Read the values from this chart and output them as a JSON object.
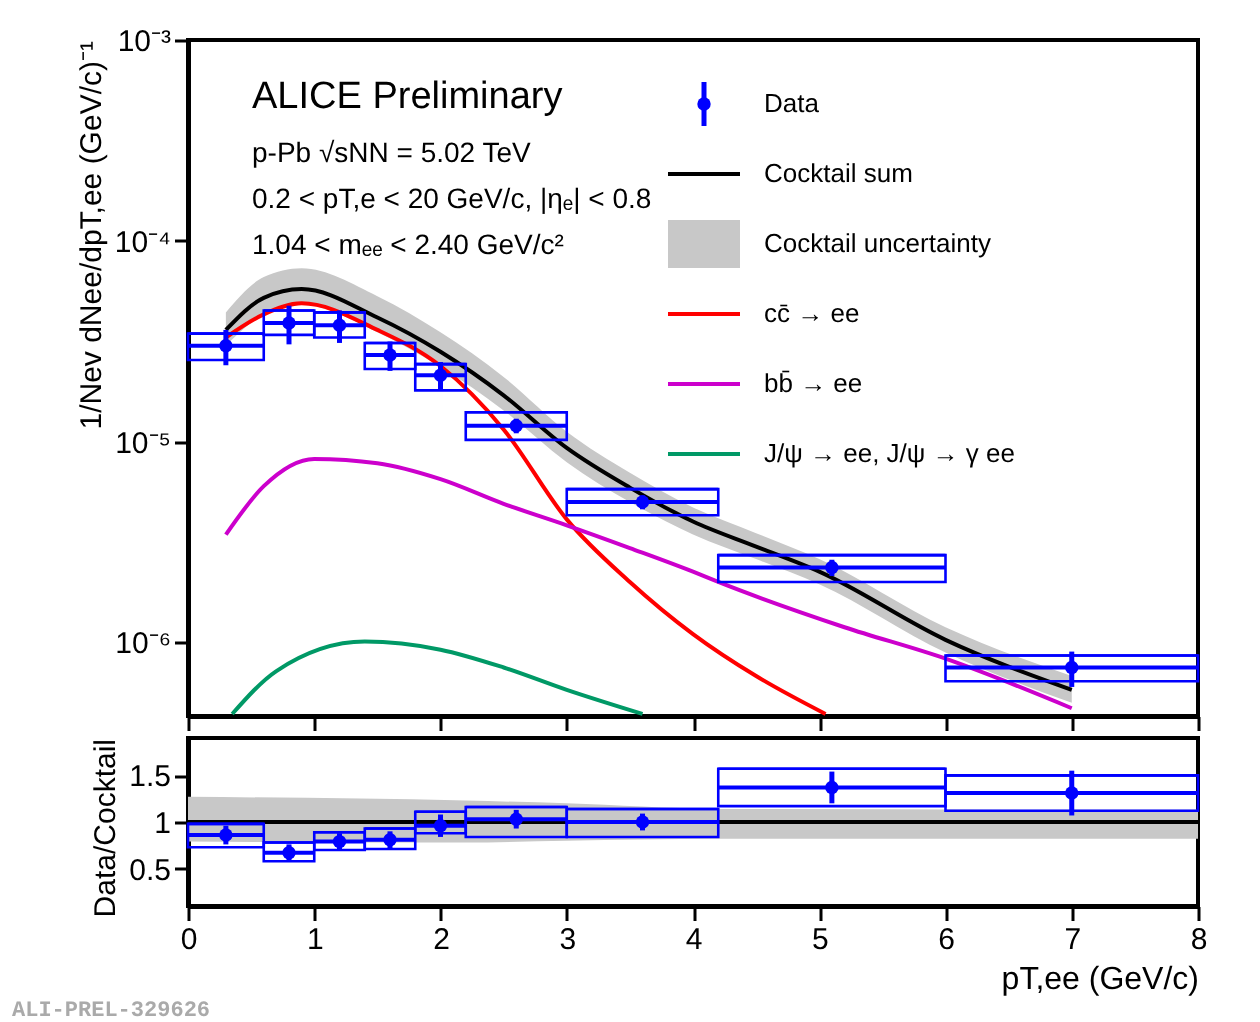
{
  "chart_data": [
    {
      "type": "scatter",
      "ylabel": "1/Nev dNee/dpT,ee (GeV/c)⁻¹",
      "log": true,
      "legend": "top right",
      "tick_labels": "y",
      "grid": false,
      "line_style": "solid",
      "xlim": [
        0,
        8
      ],
      "xticks": [
        0,
        1,
        2,
        3,
        4,
        5,
        6,
        7,
        8
      ],
      "ylim": [
        4.3e-07,
        0.001
      ],
      "yticks": [
        {
          "value": 1e-06,
          "label": "10⁻⁶"
        },
        {
          "value": 1e-05,
          "label": "10⁻⁵"
        },
        {
          "value": 0.0001,
          "label": "10⁻⁴"
        },
        {
          "value": 0.001,
          "label": "10⁻³"
        }
      ],
      "annotations": [
        "ALICE Preliminary",
        "p-Pb √sNN = 5.02 TeV",
        "0.2 < pT,e < 20 GeV/c, |ηₑ| < 0.8",
        "1.04 < mₑₑ < 2.40 GeV/c²",
        "Cocktail uncertainty"
      ],
      "series": [
        {
          "name": "Data",
          "color": "#0000ff",
          "marker": "circle",
          "x": [
            0.3,
            0.8,
            1.2,
            1.6,
            2.0,
            2.6,
            3.6,
            5.1,
            7.0
          ],
          "values": [
            3e-05,
            3.9e-05,
            3.8e-05,
            2.7e-05,
            2.14e-05,
            1.2e-05,
            5e-06,
            2.36e-06,
            7.5e-07
          ],
          "errors": [
            6e-06,
            8.5e-06,
            7e-06,
            4.5e-06,
            3.5e-06,
            1e-06,
            4e-07,
            2.2e-07,
            1.5e-07
          ],
          "xerrors": [
            0.3,
            0.2,
            0.2,
            0.2,
            0.2,
            0.4,
            0.6,
            0.9,
            1.0
          ]
        },
        {
          "type": "bar",
          "color": "#0000ff",
          "x": [
            0.3,
            0.8,
            1.2,
            1.6,
            2.0,
            2.6,
            3.6,
            5.1,
            7.0
          ],
          "base": [
            2.55e-05,
            3.4e-05,
            3.3e-05,
            2.3e-05,
            1.8e-05,
            1.02e-05,
            4.3e-06,
            2e-06,
            6.4e-07
          ],
          "values": [
            9e-06,
            1.1e-05,
            1.1e-05,
            8e-06,
            6.3e-06,
            3.8e-06,
            1.5e-06,
            7.2e-07,
            2.2e-07
          ],
          "xerrors": [
            0.3,
            0.2,
            0.2,
            0.2,
            0.2,
            0.4,
            0.6,
            0.9,
            1.0
          ]
        },
        {
          "type": "line",
          "name": "Cocktail sum",
          "color": "#000000",
          "marker": "none",
          "x": [
            0.3,
            0.6,
            0.9,
            1.5,
            2.0,
            2.5,
            3.0,
            3.5,
            4.0,
            4.5,
            5.0,
            6.0,
            7.0
          ],
          "values": [
            3.6e-05,
            5.2e-05,
            5.75e-05,
            4.15e-05,
            2.8e-05,
            1.7e-05,
            9.3e-06,
            5.9e-06,
            4e-06,
            3e-06,
            2.25e-06,
            1.03e-06,
            5.8e-07
          ],
          "lower": [
            3e-05,
            4.3e-05,
            4.8e-05,
            3.5e-05,
            2.35e-05,
            1.43e-05,
            7.9e-06,
            5e-06,
            3.45e-06,
            2.6e-06,
            1.95e-06,
            8.9e-07,
            5e-07
          ],
          "upper": [
            4.4e-05,
            6.6e-05,
            7.3e-05,
            5.3e-05,
            3.5e-05,
            2.1e-05,
            1.12e-05,
            7e-06,
            4.7e-06,
            3.5e-06,
            2.6e-06,
            1.19e-06,
            6.8e-07
          ]
        },
        {
          "type": "line",
          "name": "cc̄ → ee",
          "color": "#ff0000",
          "marker": "none",
          "x": [
            0.3,
            0.6,
            0.9,
            1.5,
            2.0,
            2.5,
            3.0,
            3.5,
            4.0,
            4.5,
            5.05
          ],
          "values": [
            3.3e-05,
            4.3e-05,
            4.88e-05,
            3.6e-05,
            2.38e-05,
            1.15e-05,
            4.1e-06,
            2e-06,
            1.1e-06,
            6.8e-07,
            4.4e-07
          ]
        },
        {
          "type": "line",
          "name": "bb̄ → ee",
          "color": "#cc00cc",
          "marker": "none",
          "x": [
            0.3,
            0.6,
            1.0,
            1.5,
            2.0,
            2.5,
            3.0,
            3.5,
            4.0,
            4.2,
            5.2,
            6.0,
            7.0
          ],
          "values": [
            3.44e-06,
            6e-06,
            8.2e-06,
            7.8e-06,
            6.5e-06,
            4.9e-06,
            3.83e-06,
            2.95e-06,
            2.25e-06,
            2e-06,
            1.19e-06,
            8.3e-07,
            4.7e-07
          ]
        },
        {
          "type": "line",
          "name": "J/ψ → ee, J/ψ → γ ee",
          "color": "#009966",
          "marker": "none",
          "x": [
            0.35,
            0.7,
            1.4,
            2.0,
            2.5,
            3.0,
            3.6
          ],
          "values": [
            4.4e-07,
            7.2e-07,
            1.01e-06,
            9.2e-07,
            7.5e-07,
            5.8e-07,
            4.4e-07
          ]
        }
      ]
    },
    {
      "type": "scatter",
      "ylabel": "Data/Cocktail",
      "xlabel": "pT,ee (GeV/c)",
      "grid": false,
      "line_style": "solid",
      "xlim": [
        0,
        8
      ],
      "xticks": [
        0,
        1,
        2,
        3,
        4,
        5,
        6,
        7,
        8
      ],
      "ylim": [
        0.1,
        1.9
      ],
      "yticks": [
        0.5,
        1,
        1.5
      ],
      "annotations": [
        "ALI-PREL-329626"
      ],
      "series": [
        {
          "type": "line",
          "color": "#000000",
          "marker": "none",
          "x": [
            0,
            2.2,
            3.0,
            4.2,
            8
          ],
          "values": [
            1,
            1,
            1,
            1,
            1
          ],
          "lower": [
            0.79,
            0.78,
            0.8,
            0.82,
            0.82
          ],
          "upper": [
            1.27,
            1.23,
            1.2,
            1.14,
            1.13
          ]
        },
        {
          "color": "#0000ff",
          "marker": "circle",
          "x": [
            0.3,
            0.8,
            1.2,
            1.6,
            2.0,
            2.6,
            3.6,
            5.1,
            7.0
          ],
          "values": [
            0.86,
            0.67,
            0.79,
            0.81,
            0.96,
            1.03,
            1.0,
            1.37,
            1.31
          ],
          "errors": [
            0.1,
            0.09,
            0.09,
            0.09,
            0.12,
            0.1,
            0.09,
            0.17,
            0.24
          ],
          "xerrors": [
            0.3,
            0.2,
            0.2,
            0.2,
            0.2,
            0.4,
            0.6,
            0.9,
            1.0
          ]
        },
        {
          "type": "bar",
          "color": "#0000ff",
          "x": [
            0.3,
            0.8,
            1.2,
            1.6,
            2.0,
            2.6,
            3.6,
            5.1,
            7.0
          ],
          "base": [
            0.73,
            0.58,
            0.7,
            0.71,
            0.88,
            0.84,
            0.84,
            1.17,
            1.12
          ],
          "values": [
            0.25,
            0.2,
            0.19,
            0.22,
            0.23,
            0.32,
            0.3,
            0.4,
            0.38
          ],
          "xerrors": [
            0.3,
            0.2,
            0.2,
            0.2,
            0.2,
            0.4,
            0.6,
            0.9,
            1.0
          ]
        }
      ]
    }
  ]
}
